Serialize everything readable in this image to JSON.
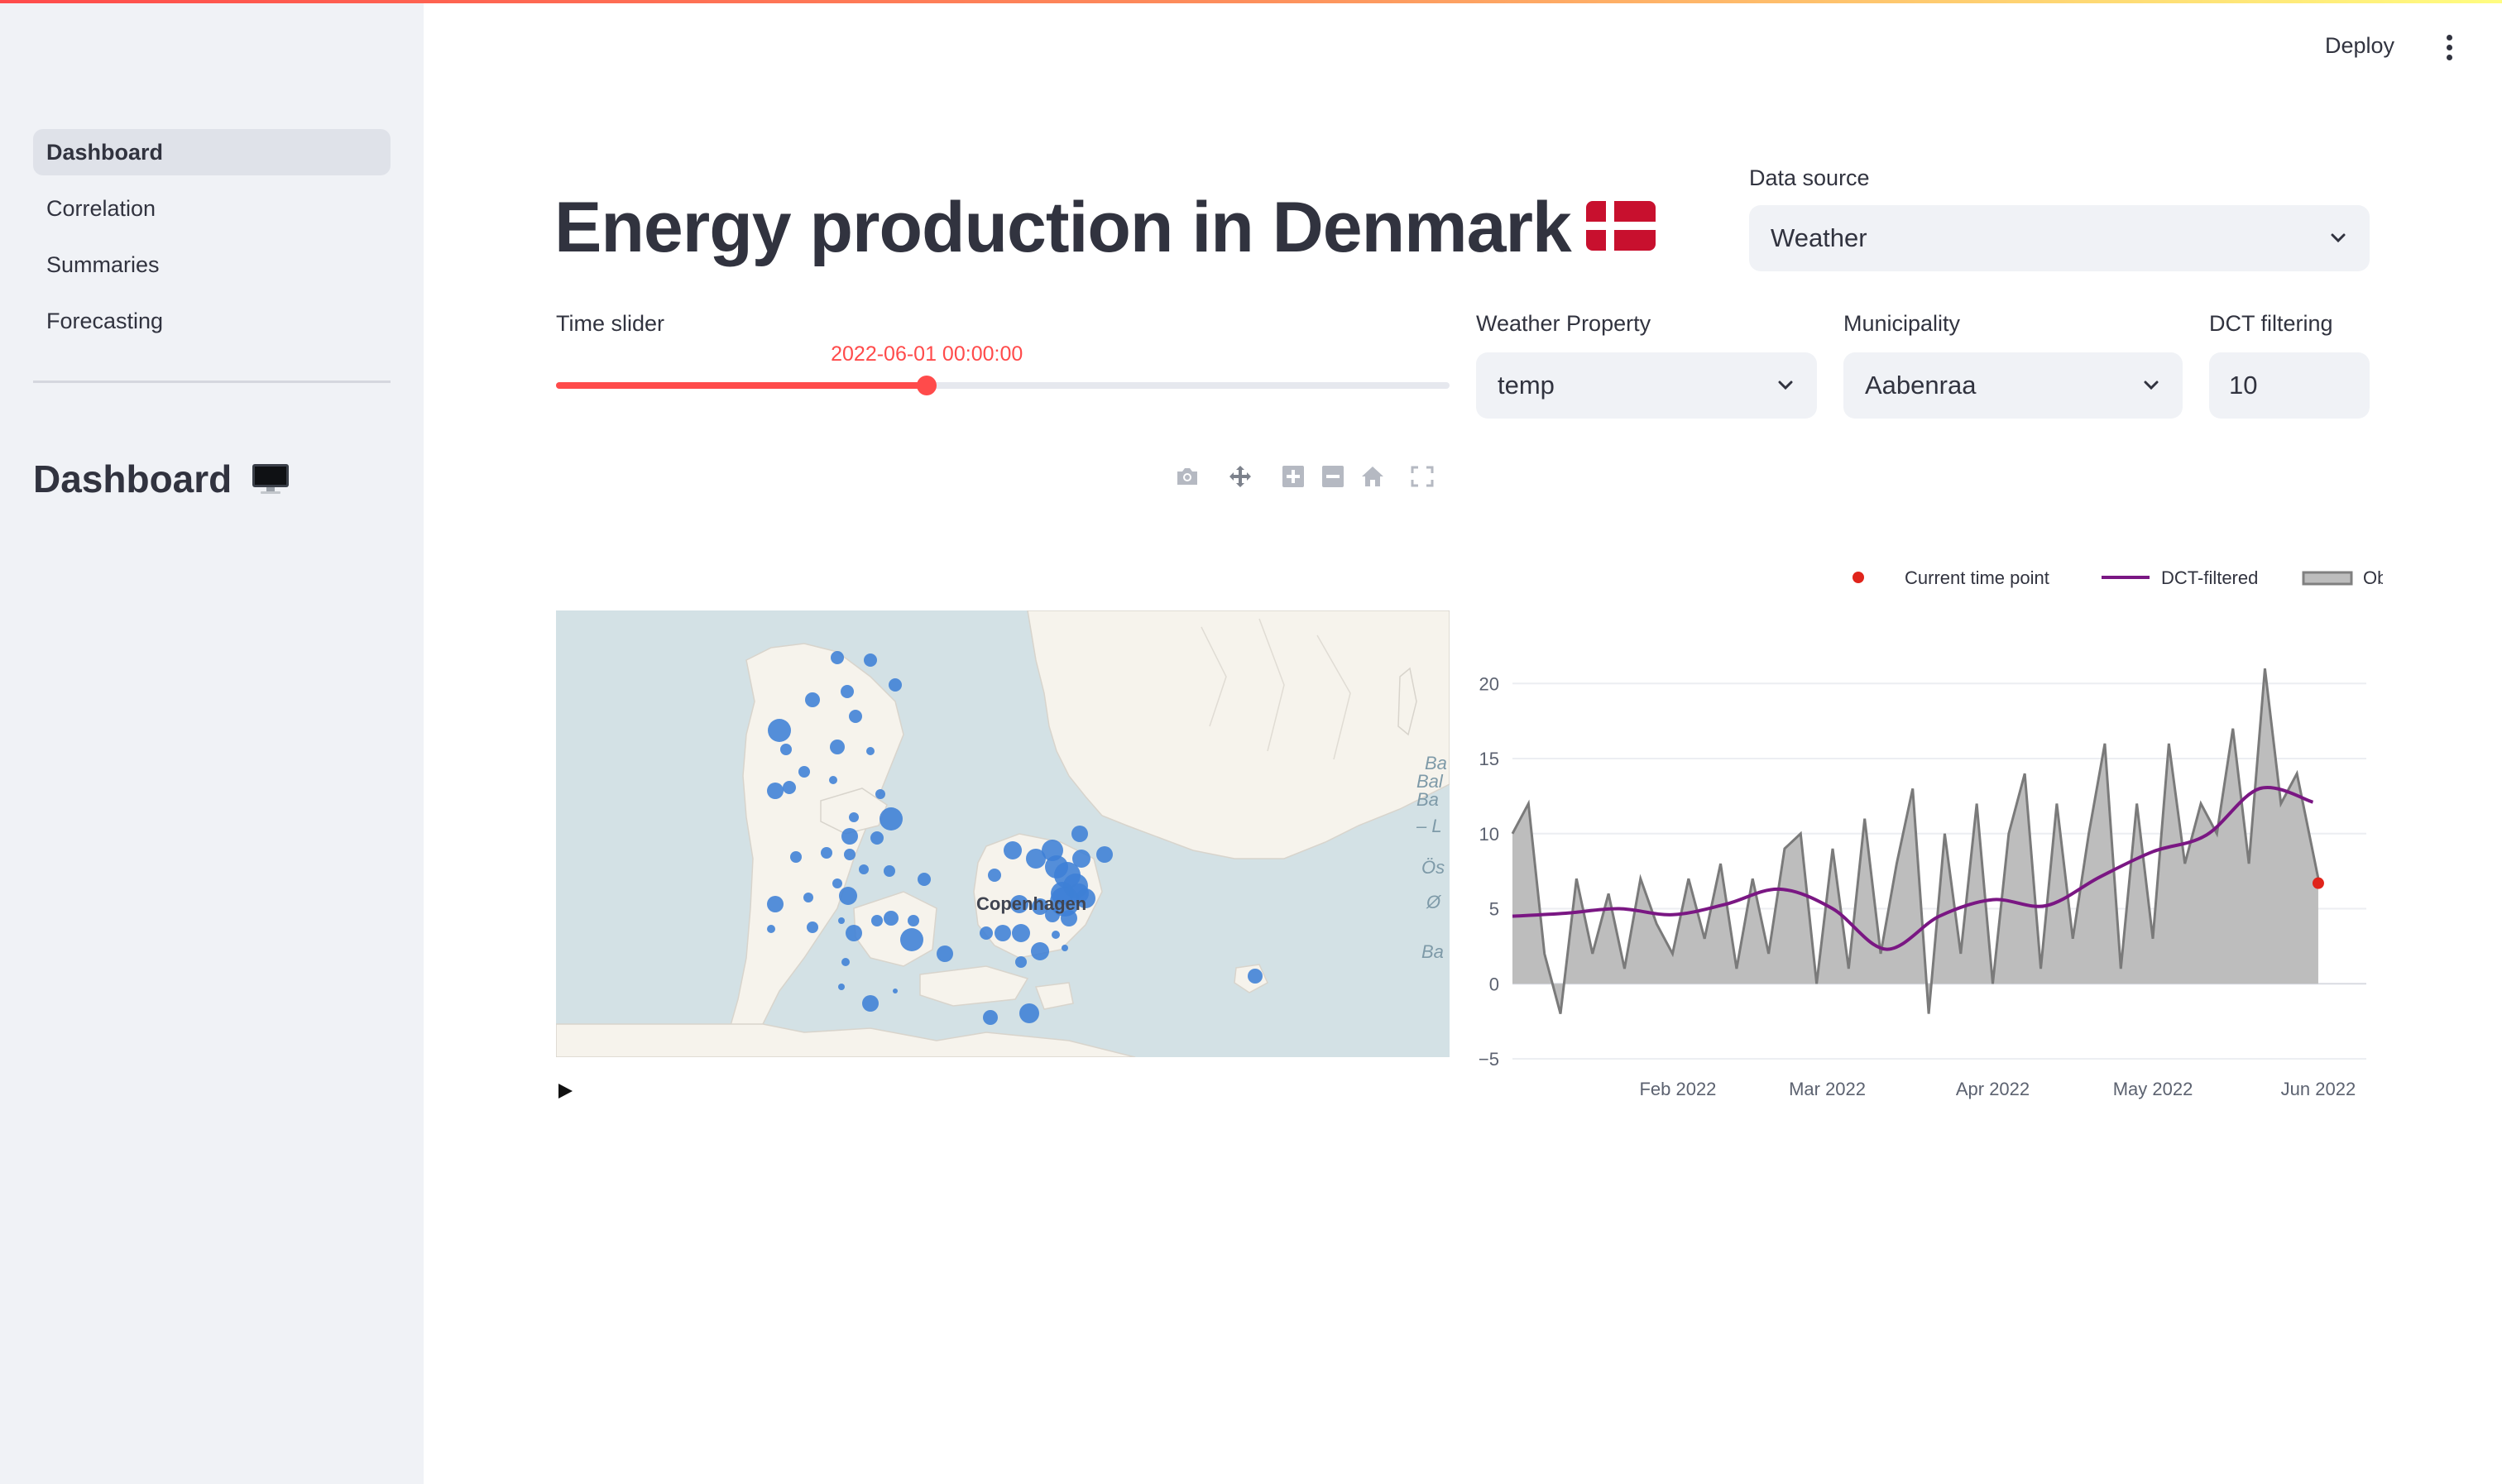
{
  "sidebar": {
    "items": [
      {
        "label": "Dashboard",
        "active": true
      },
      {
        "label": "Correlation",
        "active": false
      },
      {
        "label": "Summaries",
        "active": false
      },
      {
        "label": "Forecasting",
        "active": false
      }
    ],
    "heading": "Dashboard",
    "heading_icon": "desktop-computer-icon"
  },
  "header": {
    "deploy_label": "Deploy",
    "menu_icon": "kebab-menu-icon"
  },
  "main": {
    "title": "Energy production in Denmark",
    "title_icon": "denmark-flag-icon",
    "data_source": {
      "label": "Data source",
      "value": "Weather"
    },
    "time_slider": {
      "label": "Time slider",
      "value": "2022-06-01 00:00:00",
      "position_fraction": 0.415
    },
    "weather_property": {
      "label": "Weather Property",
      "value": "temp"
    },
    "municipality": {
      "label": "Municipality",
      "value": "Aabenraa"
    },
    "dct_filtering": {
      "label": "DCT filtering",
      "value": "10"
    },
    "modebar": [
      "camera-icon",
      "pan-icon",
      "zoom-in-icon",
      "zoom-out-icon",
      "home-icon",
      "fullscreen-icon"
    ],
    "map": {
      "city_label": "Copenhagen",
      "sea_labels": [
        "Ba",
        "Bal",
        "Ba",
        "– L",
        "Ös",
        "Ø",
        "Ba"
      ],
      "marker_color": "#3d7fd6"
    },
    "play_icon": "play-icon"
  },
  "chart_data": {
    "type": "line",
    "legend": [
      {
        "name": "Current time point",
        "color": "#e0241b",
        "kind": "marker"
      },
      {
        "name": "DCT-filtered",
        "color": "#7a1783",
        "kind": "line"
      },
      {
        "name": "Observed",
        "color": "#808080",
        "kind": "area"
      }
    ],
    "legend_position": "top-right",
    "x_ticks": [
      "Feb 2022",
      "Mar 2022",
      "Apr 2022",
      "May 2022",
      "Jun 2022"
    ],
    "xlim": [
      "2022-01-01",
      "2022-06-10"
    ],
    "y_ticks": [
      "−5",
      "0",
      "5",
      "10",
      "15",
      "20"
    ],
    "ylim": [
      -5,
      22
    ],
    "grid": true,
    "series": [
      {
        "name": "DCT-filtered",
        "x": [
          "2022-01-01",
          "2022-01-11",
          "2022-01-21",
          "2022-01-31",
          "2022-02-10",
          "2022-02-20",
          "2022-03-02",
          "2022-03-12",
          "2022-03-22",
          "2022-04-01",
          "2022-04-11",
          "2022-04-21",
          "2022-05-01",
          "2022-05-11",
          "2022-05-21",
          "2022-05-31"
        ],
        "y": [
          4.5,
          4.7,
          5.0,
          4.6,
          5.3,
          6.3,
          5.0,
          2.3,
          4.5,
          5.6,
          5.2,
          7.1,
          8.8,
          9.9,
          13.0,
          12.1
        ]
      },
      {
        "name": "Observed",
        "x": [
          "2022-01-01",
          "2022-01-04",
          "2022-01-07",
          "2022-01-10",
          "2022-01-13",
          "2022-01-16",
          "2022-01-19",
          "2022-01-22",
          "2022-01-25",
          "2022-01-28",
          "2022-01-31",
          "2022-02-03",
          "2022-02-06",
          "2022-02-09",
          "2022-02-12",
          "2022-02-15",
          "2022-02-18",
          "2022-02-21",
          "2022-02-24",
          "2022-02-27",
          "2022-03-02",
          "2022-03-05",
          "2022-03-08",
          "2022-03-11",
          "2022-03-14",
          "2022-03-17",
          "2022-03-20",
          "2022-03-23",
          "2022-03-26",
          "2022-03-29",
          "2022-04-01",
          "2022-04-04",
          "2022-04-07",
          "2022-04-10",
          "2022-04-13",
          "2022-04-16",
          "2022-04-19",
          "2022-04-22",
          "2022-04-25",
          "2022-04-28",
          "2022-05-01",
          "2022-05-04",
          "2022-05-07",
          "2022-05-10",
          "2022-05-13",
          "2022-05-16",
          "2022-05-19",
          "2022-05-22",
          "2022-05-25",
          "2022-05-28",
          "2022-06-01"
        ],
        "y": [
          10,
          12,
          2,
          -2,
          7,
          2,
          6,
          1,
          7,
          4,
          2,
          7,
          3,
          8,
          1,
          7,
          2,
          9,
          10,
          0,
          9,
          1,
          11,
          2,
          8,
          13,
          -2,
          10,
          2,
          12,
          0,
          10,
          14,
          1,
          12,
          3,
          10,
          16,
          1,
          12,
          3,
          16,
          8,
          12,
          10,
          17,
          8,
          21,
          12,
          14,
          7
        ]
      }
    ],
    "current_point": {
      "x": "2022-06-01",
      "y": 6.7
    }
  }
}
